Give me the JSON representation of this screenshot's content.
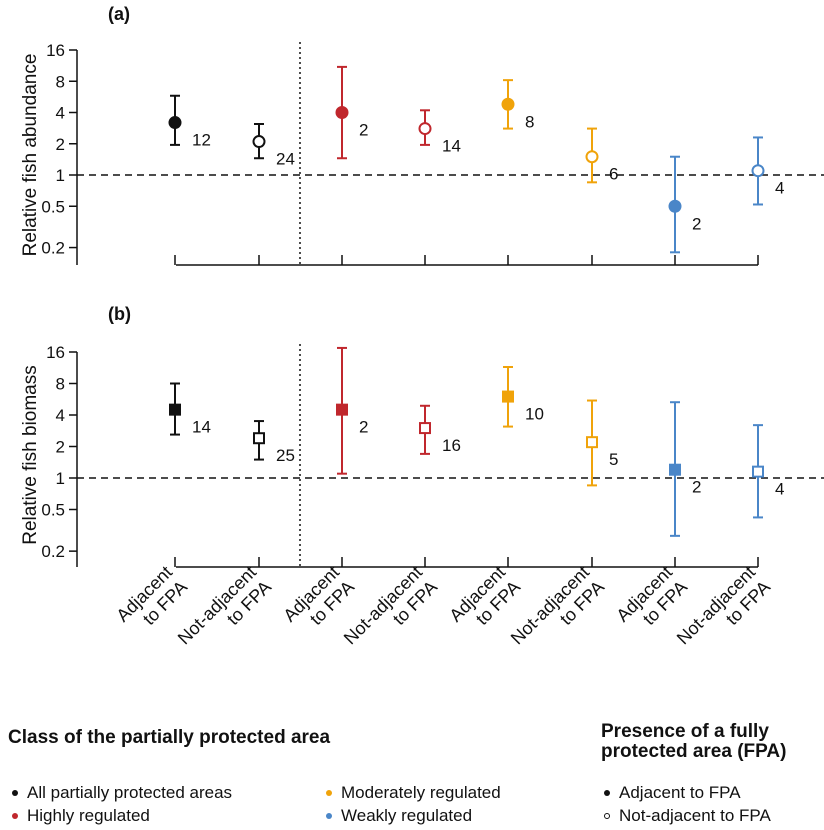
{
  "colors": {
    "all": "#111111",
    "highly": "#c0272d",
    "moderately": "#f0a30a",
    "weakly": "#4a86c8"
  },
  "chart_data": [
    {
      "panel": "(a)",
      "type": "scatter",
      "marker": "circle",
      "ylabel": "Relative fish abundance",
      "yscale": "log2",
      "yticks": [
        "16",
        "8",
        "4",
        "2",
        "1",
        "0.5",
        "0.2"
      ],
      "ylim": [
        0.15,
        20
      ],
      "reference_line": 1,
      "categories": [
        "Adjacent to FPA",
        "Not-adjacent to FPA",
        "Adjacent to FPA",
        "Not-adjacent to FPA",
        "Adjacent to FPA",
        "Not-adjacent to FPA",
        "Adjacent to FPA",
        "Not-adjacent to FPA"
      ],
      "points": [
        {
          "class": "all",
          "adjacent": true,
          "value": 3.2,
          "low": 1.95,
          "high": 5.8,
          "n": "12"
        },
        {
          "class": "all",
          "adjacent": false,
          "value": 2.1,
          "low": 1.45,
          "high": 3.1,
          "n": "24"
        },
        {
          "class": "highly",
          "adjacent": true,
          "value": 4.0,
          "low": 1.45,
          "high": 11.0,
          "n": "2"
        },
        {
          "class": "highly",
          "adjacent": false,
          "value": 2.8,
          "low": 1.95,
          "high": 4.2,
          "n": "14"
        },
        {
          "class": "moderately",
          "adjacent": true,
          "value": 4.8,
          "low": 2.8,
          "high": 8.2,
          "n": "8"
        },
        {
          "class": "moderately",
          "adjacent": false,
          "value": 1.5,
          "low": 0.85,
          "high": 2.8,
          "n": "6"
        },
        {
          "class": "weakly",
          "adjacent": true,
          "value": 0.5,
          "low": 0.18,
          "high": 1.5,
          "n": "2"
        },
        {
          "class": "weakly",
          "adjacent": false,
          "value": 1.1,
          "low": 0.52,
          "high": 2.3,
          "n": "4"
        }
      ]
    },
    {
      "panel": "(b)",
      "type": "scatter",
      "marker": "square",
      "ylabel": "Relative fish biomass",
      "yscale": "log2",
      "yticks": [
        "16",
        "8",
        "4",
        "2",
        "1",
        "0.5",
        "0.2"
      ],
      "ylim": [
        0.15,
        20
      ],
      "reference_line": 1,
      "categories": [
        "Adjacent to FPA",
        "Not-adjacent to FPA",
        "Adjacent to FPA",
        "Not-adjacent to FPA",
        "Adjacent to FPA",
        "Not-adjacent to FPA",
        "Adjacent to FPA",
        "Not-adjacent to FPA"
      ],
      "points": [
        {
          "class": "all",
          "adjacent": true,
          "value": 4.5,
          "low": 2.6,
          "high": 8.0,
          "n": "14"
        },
        {
          "class": "all",
          "adjacent": false,
          "value": 2.4,
          "low": 1.5,
          "high": 3.5,
          "n": "25"
        },
        {
          "class": "highly",
          "adjacent": true,
          "value": 4.5,
          "low": 1.1,
          "high": 17.5,
          "n": "2"
        },
        {
          "class": "highly",
          "adjacent": false,
          "value": 3.0,
          "low": 1.7,
          "high": 4.9,
          "n": "16"
        },
        {
          "class": "moderately",
          "adjacent": true,
          "value": 6.0,
          "low": 3.1,
          "high": 11.5,
          "n": "10"
        },
        {
          "class": "moderately",
          "adjacent": false,
          "value": 2.2,
          "low": 0.85,
          "high": 5.5,
          "n": "5"
        },
        {
          "class": "weakly",
          "adjacent": true,
          "value": 1.2,
          "low": 0.28,
          "high": 5.3,
          "n": "2"
        },
        {
          "class": "weakly",
          "adjacent": false,
          "value": 1.15,
          "low": 0.42,
          "high": 3.2,
          "n": "4"
        }
      ]
    }
  ],
  "xlabels": [
    [
      "Adjacent",
      "to FPA"
    ],
    [
      "Not-adjacent",
      "to FPA"
    ],
    [
      "Adjacent",
      "to FPA"
    ],
    [
      "Not-adjacent",
      "to FPA"
    ],
    [
      "Adjacent",
      "to FPA"
    ],
    [
      "Not-adjacent",
      "to FPA"
    ],
    [
      "Adjacent",
      "to FPA"
    ],
    [
      "Not-adjacent",
      "to FPA"
    ]
  ],
  "legend": {
    "class_title": "Class of the partially protected area",
    "class_items": [
      {
        "label": "All partially protected areas",
        "class": "all"
      },
      {
        "label": "Highly regulated",
        "class": "highly"
      },
      {
        "label": "Moderately regulated",
        "class": "moderately"
      },
      {
        "label": "Weakly regulated",
        "class": "weakly"
      }
    ],
    "presence_title_line1": "Presence of a fully",
    "presence_title_line2": "protected area (FPA)",
    "presence_items": [
      {
        "label": "Adjacent to FPA",
        "hollow": false
      },
      {
        "label": "Not-adjacent to FPA",
        "hollow": true
      }
    ]
  }
}
